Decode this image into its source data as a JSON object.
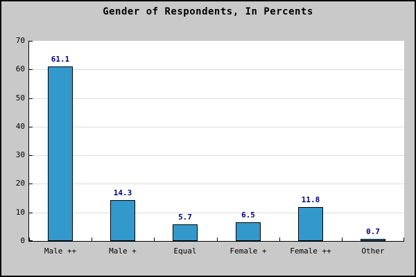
{
  "window": {
    "background": "#C9C9C9",
    "border_color": "#000000"
  },
  "chart_data": {
    "type": "bar",
    "title": "Gender of Respondents, In Percents",
    "categories": [
      "Male ++",
      "Male +",
      "Equal",
      "Female +",
      "Female ++",
      "Other"
    ],
    "values": [
      61.1,
      14.3,
      5.7,
      6.5,
      11.8,
      0.7
    ],
    "value_labels": [
      "61.1",
      "14.3",
      "5.7",
      "6.5",
      "11.8",
      "0.7"
    ],
    "xlabel": "",
    "ylabel": "",
    "ylim": [
      0,
      70
    ],
    "yticks": [
      0,
      10,
      20,
      30,
      40,
      50,
      60,
      70
    ],
    "grid": true,
    "legend": "none",
    "colors": {
      "bar_fill": "#3399CC",
      "bar_border": "#000000",
      "value_label": "#000080",
      "gridline": "#DCDCDC",
      "plot_background": "#FFFFFF",
      "axis": "#000000",
      "tick_label": "#000000"
    }
  }
}
